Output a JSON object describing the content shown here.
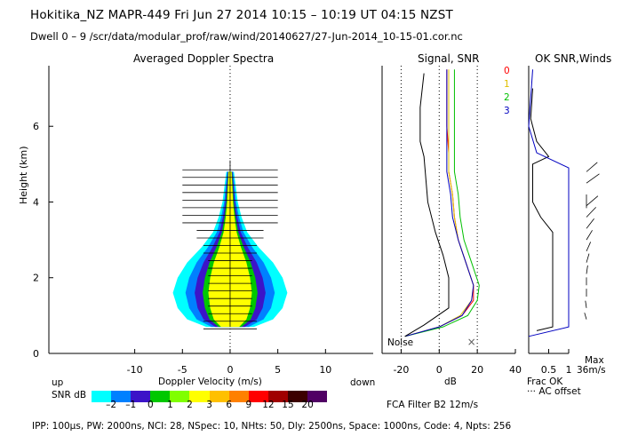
{
  "header": {
    "line1": "Hokitika_NZ   MAPR-449   Fri Jun 27 2014 10:15 – 10:19 UT 04:15 NZST",
    "line2": "Dwell   0 –   9    /scr/data/modular_prof/raw/wind/20140627/27-Jun-2014_10-15-01.cor.nc"
  },
  "left_panel": {
    "title": "Averaged Doppler Spectra",
    "ylabel": "Height (km)",
    "xlabel": "Doppler Velocity (m/s)",
    "up_label": "up",
    "down_label": "down",
    "snr_label": "SNR dB"
  },
  "colorbar": {
    "colors": [
      "#00ffff",
      "#0080ff",
      "#3c14c8",
      "#00c800",
      "#80ff00",
      "#ffff00",
      "#ffc000",
      "#ff8000",
      "#ff0000",
      "#a00000",
      "#3c0000",
      "#500064"
    ],
    "labels": [
      "–2",
      "–1",
      "0",
      "1",
      "2",
      "3",
      "6",
      "9",
      "12",
      "15",
      "20"
    ]
  },
  "middle_panel": {
    "title": "Signal, SNR",
    "xlabel": "dB",
    "noise_label": "Noise",
    "filter_text": "FCA Filter B2 12m/s"
  },
  "right_panel": {
    "title": "OK SNR,Winds",
    "frac_ok": "Frac OK",
    "ac_offset": "··· AC offset",
    "max_label": "Max",
    "max_value": "36m/s"
  },
  "legend": {
    "entries": [
      {
        "label": "0",
        "color": "#ff0000"
      },
      {
        "label": "1",
        "color": "#e0c000"
      },
      {
        "label": "2",
        "color": "#00c000"
      },
      {
        "label": "3",
        "color": "#0000c0"
      }
    ]
  },
  "footer": {
    "params": "IPP: 100μs,   PW: 2000ns,   NCI:  28,   NSpec: 10,  NHts: 50,   Dly: 2500ns,   Space: 1000ns,   Code: 4,   Npts: 256"
  },
  "chart_data": [
    {
      "type": "heatmap",
      "title": "Averaged Doppler Spectra",
      "xlabel": "Doppler Velocity (m/s)",
      "ylabel": "Height (km)",
      "xlim": [
        -19,
        15
      ],
      "ylim": [
        0,
        7.6
      ],
      "xticks": [
        -10,
        -5,
        0,
        5,
        10
      ],
      "yticks": [
        0,
        2,
        4,
        6
      ],
      "spectral_width_profile": [
        {
          "h": 0.7,
          "w": 2.5
        },
        {
          "h": 0.9,
          "w": 4.5
        },
        {
          "h": 1.2,
          "w": 5.5
        },
        {
          "h": 1.6,
          "w": 6.0
        },
        {
          "h": 2.0,
          "w": 5.5
        },
        {
          "h": 2.4,
          "w": 4.5
        },
        {
          "h": 2.8,
          "w": 3.0
        },
        {
          "h": 3.2,
          "w": 1.8
        },
        {
          "h": 3.6,
          "w": 1.2
        },
        {
          "h": 4.0,
          "w": 0.8
        },
        {
          "h": 4.4,
          "w": 0.6
        },
        {
          "h": 4.8,
          "w": 0.4
        }
      ]
    },
    {
      "type": "line",
      "title": "Signal, SNR",
      "xlabel": "dB",
      "xlim": [
        -30,
        40
      ],
      "xticks": [
        -20,
        0,
        20,
        40
      ],
      "series": [
        {
          "name": "0",
          "color": "#ff0000",
          "points": [
            [
              -18,
              0.45
            ],
            [
              0,
              0.7
            ],
            [
              12,
              1.0
            ],
            [
              18,
              1.4
            ],
            [
              18,
              1.8
            ],
            [
              14,
              2.4
            ],
            [
              10,
              3.0
            ],
            [
              8,
              3.6
            ],
            [
              7,
              4.2
            ],
            [
              5,
              4.8
            ],
            [
              5,
              5.3
            ],
            [
              4,
              6.0
            ],
            [
              4,
              7.5
            ]
          ]
        },
        {
          "name": "1",
          "color": "#e0c000",
          "points": [
            [
              -18,
              0.45
            ],
            [
              0,
              0.7
            ],
            [
              11,
              1.0
            ],
            [
              17,
              1.4
            ],
            [
              18,
              1.8
            ],
            [
              14,
              2.4
            ],
            [
              10,
              3.0
            ],
            [
              8,
              3.6
            ],
            [
              7,
              4.2
            ],
            [
              5,
              4.8
            ],
            [
              5,
              5.3
            ],
            [
              5,
              6.0
            ],
            [
              5,
              7.5
            ]
          ]
        },
        {
          "name": "2",
          "color": "#00c000",
          "points": [
            [
              -18,
              0.45
            ],
            [
              2,
              0.7
            ],
            [
              15,
              1.0
            ],
            [
              20,
              1.4
            ],
            [
              21,
              1.8
            ],
            [
              17,
              2.4
            ],
            [
              13,
              3.0
            ],
            [
              11,
              3.6
            ],
            [
              10,
              4.2
            ],
            [
              8,
              4.8
            ],
            [
              8,
              5.3
            ],
            [
              8,
              6.0
            ],
            [
              8,
              7.5
            ]
          ]
        },
        {
          "name": "3",
          "color": "#0000c0",
          "points": [
            [
              -18,
              0.45
            ],
            [
              0,
              0.7
            ],
            [
              12,
              1.0
            ],
            [
              17,
              1.4
            ],
            [
              18,
              1.8
            ],
            [
              14,
              2.4
            ],
            [
              10,
              3.0
            ],
            [
              7,
              3.6
            ],
            [
              6,
              4.2
            ],
            [
              4,
              4.8
            ],
            [
              4,
              5.3
            ],
            [
              4,
              6.0
            ],
            [
              4,
              7.5
            ]
          ]
        },
        {
          "name": "Noise",
          "color": "#000000",
          "points": [
            [
              -18,
              0.45
            ],
            [
              -8,
              0.75
            ],
            [
              5,
              1.2
            ],
            [
              5,
              2.0
            ],
            [
              2,
              2.6
            ],
            [
              -2,
              3.2
            ],
            [
              -6,
              4.0
            ],
            [
              -8,
              5.2
            ],
            [
              -10,
              5.6
            ],
            [
              -10,
              6.5
            ],
            [
              -8,
              7.4
            ]
          ]
        }
      ]
    },
    {
      "type": "line",
      "title": "OK SNR,Winds",
      "xlabel": "Frac OK",
      "xlim": [
        0,
        1
      ],
      "xticks": [
        0.5,
        1
      ],
      "series": [
        {
          "name": "frac_ok",
          "color": "#000000",
          "points": [
            [
              0.2,
              0.6
            ],
            [
              0.6,
              0.7
            ],
            [
              0.6,
              3.2
            ],
            [
              0.3,
              3.6
            ],
            [
              0.1,
              4.0
            ],
            [
              0.1,
              4.4
            ],
            [
              0.1,
              5.0
            ],
            [
              0.5,
              5.2
            ],
            [
              0.2,
              5.6
            ],
            [
              0.05,
              6.2
            ],
            [
              0.1,
              7.0
            ]
          ]
        },
        {
          "name": "snr_ok",
          "color": "#0000c0",
          "points": [
            [
              0.0,
              0.45
            ],
            [
              1.0,
              0.7
            ],
            [
              1.0,
              4.9
            ],
            [
              0.2,
              5.3
            ],
            [
              0.0,
              6.0
            ],
            [
              0.1,
              7.5
            ]
          ]
        }
      ],
      "wind_barbs": [
        {
          "h": 0.9,
          "dir": 280,
          "speed": 12
        },
        {
          "h": 1.2,
          "dir": 275,
          "speed": 14
        },
        {
          "h": 1.5,
          "dir": 270,
          "speed": 16
        },
        {
          "h": 1.8,
          "dir": 270,
          "speed": 16
        },
        {
          "h": 2.1,
          "dir": 265,
          "speed": 18
        },
        {
          "h": 2.4,
          "dir": 260,
          "speed": 20
        },
        {
          "h": 2.7,
          "dir": 255,
          "speed": 22
        },
        {
          "h": 3.0,
          "dir": 250,
          "speed": 24
        },
        {
          "h": 3.3,
          "dir": 245,
          "speed": 26
        },
        {
          "h": 3.6,
          "dir": 240,
          "speed": 28
        },
        {
          "h": 3.9,
          "dir": 235,
          "speed": 30
        },
        {
          "h": 4.2,
          "dir": 90,
          "speed": 36
        },
        {
          "h": 4.5,
          "dir": 230,
          "speed": 30
        },
        {
          "h": 4.8,
          "dir": 235,
          "speed": 28
        }
      ]
    }
  ]
}
